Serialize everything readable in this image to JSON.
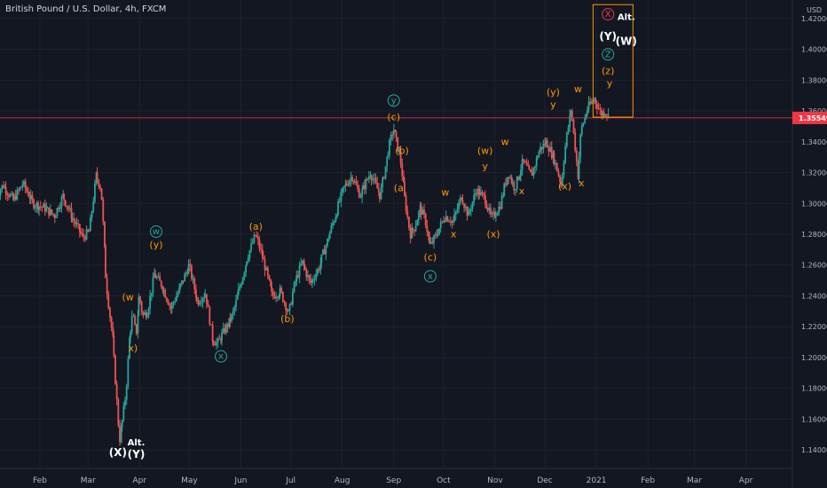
{
  "header": {
    "title": "British Pound / U.S. Dollar, 4h, FXCM"
  },
  "colors": {
    "background": "#131722",
    "grid": "#1e222d",
    "text": "#b2b5be",
    "candle_up": "#26a69a",
    "candle_down": "#ef5350",
    "wave_orange": "#ff9800",
    "wave_teal": "#26a69a",
    "wave_white": "#ffffff",
    "wave_red": "#f23645",
    "price_line": "#f23645",
    "box": "#ff9800"
  },
  "chart_data": {
    "type": "candlestick",
    "currency": "USD",
    "last_price": "1.35549",
    "ylim": [
      1.128,
      1.432
    ],
    "y_ticks": [
      "1.42000",
      "1.40000",
      "1.38000",
      "1.36000",
      "1.34000",
      "1.32000",
      "1.30000",
      "1.28000",
      "1.26000",
      "1.24000",
      "1.22000",
      "1.20000",
      "1.18000",
      "1.16000",
      "1.14000"
    ],
    "x_ticks": [
      "Feb",
      "Mar",
      "Apr",
      "May",
      "Jun",
      "Jul",
      "Aug",
      "Sep",
      "Oct",
      "Nov",
      "Dec",
      "2021",
      "Feb",
      "Mar",
      "Apr"
    ],
    "grid": true,
    "price_path": [
      [
        "2020-01-06",
        1.305
      ],
      [
        "2020-01-10",
        1.312
      ],
      [
        "2020-01-16",
        1.302
      ],
      [
        "2020-01-22",
        1.313
      ],
      [
        "2020-01-28",
        1.3
      ],
      [
        "2020-02-04",
        1.297
      ],
      [
        "2020-02-10",
        1.292
      ],
      [
        "2020-02-15",
        1.305
      ],
      [
        "2020-02-21",
        1.29
      ],
      [
        "2020-02-27",
        1.278
      ],
      [
        "2020-03-02",
        1.282
      ],
      [
        "2020-03-06",
        1.318
      ],
      [
        "2020-03-09",
        1.31
      ],
      [
        "2020-03-12",
        1.25
      ],
      [
        "2020-03-14",
        1.23
      ],
      [
        "2020-03-16",
        1.212
      ],
      [
        "2020-03-18",
        1.18
      ],
      [
        "2020-03-20",
        1.146
      ],
      [
        "2020-03-22",
        1.16
      ],
      [
        "2020-03-24",
        1.178
      ],
      [
        "2020-03-26",
        1.212
      ],
      [
        "2020-03-28",
        1.228
      ],
      [
        "2020-03-30",
        1.215
      ],
      [
        "2020-04-01",
        1.241
      ],
      [
        "2020-04-03",
        1.227
      ],
      [
        "2020-04-06",
        1.23
      ],
      [
        "2020-04-10",
        1.254
      ],
      [
        "2020-04-15",
        1.246
      ],
      [
        "2020-04-20",
        1.232
      ],
      [
        "2020-04-25",
        1.244
      ],
      [
        "2020-05-01",
        1.26
      ],
      [
        "2020-05-06",
        1.236
      ],
      [
        "2020-05-11",
        1.242
      ],
      [
        "2020-05-15",
        1.212
      ],
      [
        "2020-05-18",
        1.209
      ],
      [
        "2020-05-22",
        1.217
      ],
      [
        "2020-05-27",
        1.227
      ],
      [
        "2020-06-02",
        1.252
      ],
      [
        "2020-06-05",
        1.265
      ],
      [
        "2020-06-10",
        1.28
      ],
      [
        "2020-06-15",
        1.262
      ],
      [
        "2020-06-20",
        1.24
      ],
      [
        "2020-06-25",
        1.243
      ],
      [
        "2020-06-30",
        1.228
      ],
      [
        "2020-07-03",
        1.246
      ],
      [
        "2020-07-08",
        1.262
      ],
      [
        "2020-07-13",
        1.248
      ],
      [
        "2020-07-18",
        1.258
      ],
      [
        "2020-07-23",
        1.275
      ],
      [
        "2020-07-28",
        1.292
      ],
      [
        "2020-08-02",
        1.31
      ],
      [
        "2020-08-07",
        1.318
      ],
      [
        "2020-08-12",
        1.305
      ],
      [
        "2020-08-18",
        1.32
      ],
      [
        "2020-08-24",
        1.305
      ],
      [
        "2020-08-29",
        1.335
      ],
      [
        "2020-09-01",
        1.349
      ],
      [
        "2020-09-05",
        1.33
      ],
      [
        "2020-09-08",
        1.302
      ],
      [
        "2020-09-11",
        1.28
      ],
      [
        "2020-09-14",
        1.285
      ],
      [
        "2020-09-17",
        1.297
      ],
      [
        "2020-09-20",
        1.29
      ],
      [
        "2020-09-23",
        1.272
      ],
      [
        "2020-09-27",
        1.28
      ],
      [
        "2020-10-02",
        1.292
      ],
      [
        "2020-10-07",
        1.288
      ],
      [
        "2020-10-12",
        1.305
      ],
      [
        "2020-10-16",
        1.292
      ],
      [
        "2020-10-21",
        1.309
      ],
      [
        "2020-10-26",
        1.303
      ],
      [
        "2020-10-30",
        1.29
      ],
      [
        "2020-11-04",
        1.298
      ],
      [
        "2020-11-09",
        1.32
      ],
      [
        "2020-11-13",
        1.31
      ],
      [
        "2020-11-18",
        1.327
      ],
      [
        "2020-11-23",
        1.318
      ],
      [
        "2020-11-28",
        1.335
      ],
      [
        "2020-12-02",
        1.34
      ],
      [
        "2020-12-07",
        1.328
      ],
      [
        "2020-12-11",
        1.312
      ],
      [
        "2020-12-14",
        1.342
      ],
      [
        "2020-12-17",
        1.362
      ],
      [
        "2020-12-21",
        1.318
      ],
      [
        "2020-12-23",
        1.348
      ],
      [
        "2020-12-27",
        1.362
      ],
      [
        "2020-12-31",
        1.368
      ],
      [
        "2021-01-04",
        1.358
      ],
      [
        "2021-01-07",
        1.36
      ],
      [
        "2021-01-09",
        1.355
      ]
    ],
    "labels": [
      {
        "text": "(X)",
        "date": "2020-03-19",
        "price": 1.136,
        "color": "white",
        "size": 12
      },
      {
        "text": "Alt.",
        "date": "2020-03-30",
        "price": 1.143,
        "color": "white",
        "size": 10
      },
      {
        "text": "(Y)",
        "date": "2020-03-30",
        "price": 1.135,
        "color": "white",
        "size": 12
      },
      {
        "text": "(w",
        "date": "2020-03-25",
        "price": 1.237,
        "color": "orange",
        "size": 11
      },
      {
        "text": "x)",
        "date": "2020-03-28",
        "price": 1.204,
        "color": "orange",
        "size": 11
      },
      {
        "text": "w",
        "date": "2020-04-11",
        "price": 1.28,
        "color": "teal",
        "size": 10,
        "circle": true
      },
      {
        "text": "(y)",
        "date": "2020-04-11",
        "price": 1.271,
        "color": "orange",
        "size": 11
      },
      {
        "text": "x",
        "date": "2020-05-20",
        "price": 1.199,
        "color": "teal",
        "size": 10,
        "circle": true
      },
      {
        "text": "(a)",
        "date": "2020-06-10",
        "price": 1.283,
        "color": "orange",
        "size": 11
      },
      {
        "text": "(b)",
        "date": "2020-06-29",
        "price": 1.223,
        "color": "orange",
        "size": 11
      },
      {
        "text": "y",
        "date": "2020-09-01",
        "price": 1.365,
        "color": "teal",
        "size": 10,
        "circle": true
      },
      {
        "text": "(c)",
        "date": "2020-09-01",
        "price": 1.354,
        "color": "orange",
        "size": 11
      },
      {
        "text": "(b)",
        "date": "2020-09-06",
        "price": 1.332,
        "color": "orange",
        "size": 11
      },
      {
        "text": "(a",
        "date": "2020-09-04",
        "price": 1.308,
        "color": "orange",
        "size": 11
      },
      {
        "text": "(c)",
        "date": "2020-09-23",
        "price": 1.263,
        "color": "orange",
        "size": 11
      },
      {
        "text": "x",
        "date": "2020-09-23",
        "price": 1.251,
        "color": "teal",
        "size": 10,
        "circle": true
      },
      {
        "text": "w",
        "date": "2020-10-02",
        "price": 1.305,
        "color": "orange",
        "size": 11
      },
      {
        "text": "x",
        "date": "2020-10-07",
        "price": 1.278,
        "color": "orange",
        "size": 11
      },
      {
        "text": "(w)",
        "date": "2020-10-26",
        "price": 1.332,
        "color": "orange",
        "size": 11
      },
      {
        "text": "y",
        "date": "2020-10-26",
        "price": 1.322,
        "color": "orange",
        "size": 11
      },
      {
        "text": "(x)",
        "date": "2020-10-31",
        "price": 1.278,
        "color": "orange",
        "size": 11
      },
      {
        "text": "w",
        "date": "2020-11-07",
        "price": 1.338,
        "color": "orange",
        "size": 11
      },
      {
        "text": "x",
        "date": "2020-11-17",
        "price": 1.306,
        "color": "orange",
        "size": 11
      },
      {
        "text": "(y)",
        "date": "2020-12-06",
        "price": 1.37,
        "color": "orange",
        "size": 11
      },
      {
        "text": "y",
        "date": "2020-12-06",
        "price": 1.362,
        "color": "orange",
        "size": 11
      },
      {
        "text": "(x)",
        "date": "2020-12-13",
        "price": 1.309,
        "color": "orange",
        "size": 11
      },
      {
        "text": "w",
        "date": "2020-12-21",
        "price": 1.372,
        "color": "orange",
        "size": 11
      },
      {
        "text": "x",
        "date": "2020-12-23",
        "price": 1.311,
        "color": "orange",
        "size": 11
      },
      {
        "text": "X",
        "date": "2021-01-08",
        "price": 1.421,
        "color": "red",
        "size": 10,
        "circle": true
      },
      {
        "text": "(Y)",
        "date": "2021-01-08",
        "price": 1.406,
        "color": "white",
        "size": 12
      },
      {
        "text": "Z",
        "date": "2021-01-08",
        "price": 1.395,
        "color": "teal",
        "size": 10,
        "circle": true
      },
      {
        "text": "(z)",
        "date": "2021-01-08",
        "price": 1.384,
        "color": "orange",
        "size": 11
      },
      {
        "text": "y",
        "date": "2021-01-09",
        "price": 1.376,
        "color": "orange",
        "size": 11
      },
      {
        "text": "Alt.",
        "date": "2021-01-19",
        "price": 1.419,
        "color": "white",
        "size": 10
      },
      {
        "text": "(W)",
        "date": "2021-01-19",
        "price": 1.403,
        "color": "white",
        "size": 12
      }
    ],
    "box": {
      "date_from": "2020-12-30",
      "date_to": "2021-01-23",
      "price_low": 1.356,
      "price_high": 1.429
    }
  }
}
